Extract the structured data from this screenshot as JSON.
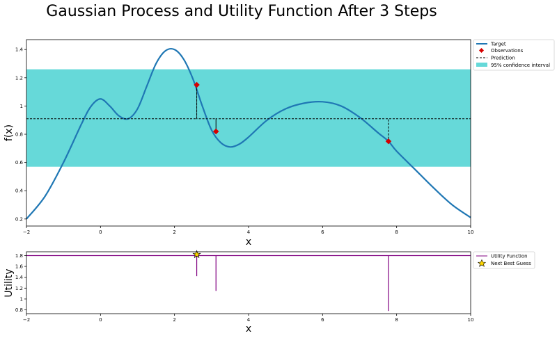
{
  "title": "Gaussian Process and Utility Function After 3 Steps",
  "colors": {
    "target": "#1f77b4",
    "observation": "#d60000",
    "prediction": "#000000",
    "confidence": "#66d9d9",
    "utility": "#800080",
    "star": "#ffd700"
  },
  "chart_data": [
    {
      "type": "line",
      "ylabel": "f(x)",
      "xlabel": "x",
      "xlim": [
        -2,
        10
      ],
      "ylim": [
        0.15,
        1.47
      ],
      "xticks": [
        -2,
        0,
        2,
        4,
        6,
        8,
        10
      ],
      "yticks": [
        0.2,
        0.4,
        0.6,
        0.8,
        1.0,
        1.2,
        1.4
      ],
      "legend": [
        "Target",
        "Observations",
        "Prediction",
        "95% confidence interval"
      ],
      "legend_position": "outside-right-top",
      "series": [
        {
          "name": "Target",
          "x": [
            -2,
            -1.5,
            -1,
            -0.5,
            -0.25,
            0,
            0.25,
            0.5,
            0.75,
            1,
            1.25,
            1.5,
            1.75,
            2,
            2.25,
            2.5,
            2.75,
            3,
            3.25,
            3.5,
            3.75,
            4,
            4.5,
            5,
            5.5,
            6,
            6.5,
            7,
            7.5,
            7.78,
            8,
            8.5,
            9,
            9.5,
            10
          ],
          "y": [
            0.2,
            0.36,
            0.6,
            0.88,
            1.0,
            1.05,
            1.0,
            0.93,
            0.91,
            0.98,
            1.14,
            1.3,
            1.39,
            1.4,
            1.33,
            1.19,
            1.0,
            0.83,
            0.74,
            0.71,
            0.73,
            0.78,
            0.9,
            0.98,
            1.02,
            1.03,
            1.0,
            0.92,
            0.81,
            0.75,
            0.68,
            0.55,
            0.42,
            0.3,
            0.21
          ]
        },
        {
          "name": "Observations",
          "x": [
            2.6,
            3.12,
            7.78
          ],
          "y": [
            1.15,
            0.82,
            0.75
          ]
        },
        {
          "name": "Prediction",
          "x": [
            -2,
            2.6,
            2.6,
            2.6,
            3.12,
            3.12,
            3.12,
            7.78,
            7.78,
            7.78,
            10
          ],
          "y": [
            0.91,
            0.91,
            1.15,
            0.91,
            0.91,
            0.82,
            0.91,
            0.91,
            0.75,
            0.91,
            0.91
          ]
        }
      ],
      "confidence_interval": {
        "name": "95% confidence interval",
        "x": [
          -2,
          10
        ],
        "lower": 0.57,
        "upper": 1.26
      }
    },
    {
      "type": "line",
      "ylabel": "Utility",
      "xlabel": "x",
      "xlim": [
        -2,
        10
      ],
      "ylim": [
        0.73,
        1.87
      ],
      "xticks": [
        -2,
        0,
        2,
        4,
        6,
        8,
        10
      ],
      "yticks": [
        0.8,
        1.0,
        1.2,
        1.4,
        1.6,
        1.8
      ],
      "legend": [
        "Utility Function",
        "Next Best Guess"
      ],
      "legend_position": "outside-right-top",
      "series": [
        {
          "name": "Utility Function",
          "x": [
            -2,
            2.6,
            2.6,
            2.6,
            3.12,
            3.12,
            3.12,
            7.78,
            7.78,
            7.78,
            10
          ],
          "y": [
            1.8,
            1.8,
            1.42,
            1.8,
            1.8,
            1.15,
            1.8,
            1.8,
            0.78,
            1.8,
            1.8
          ]
        },
        {
          "name": "Next Best Guess",
          "x": [
            2.6
          ],
          "y": [
            1.82
          ]
        }
      ]
    }
  ]
}
